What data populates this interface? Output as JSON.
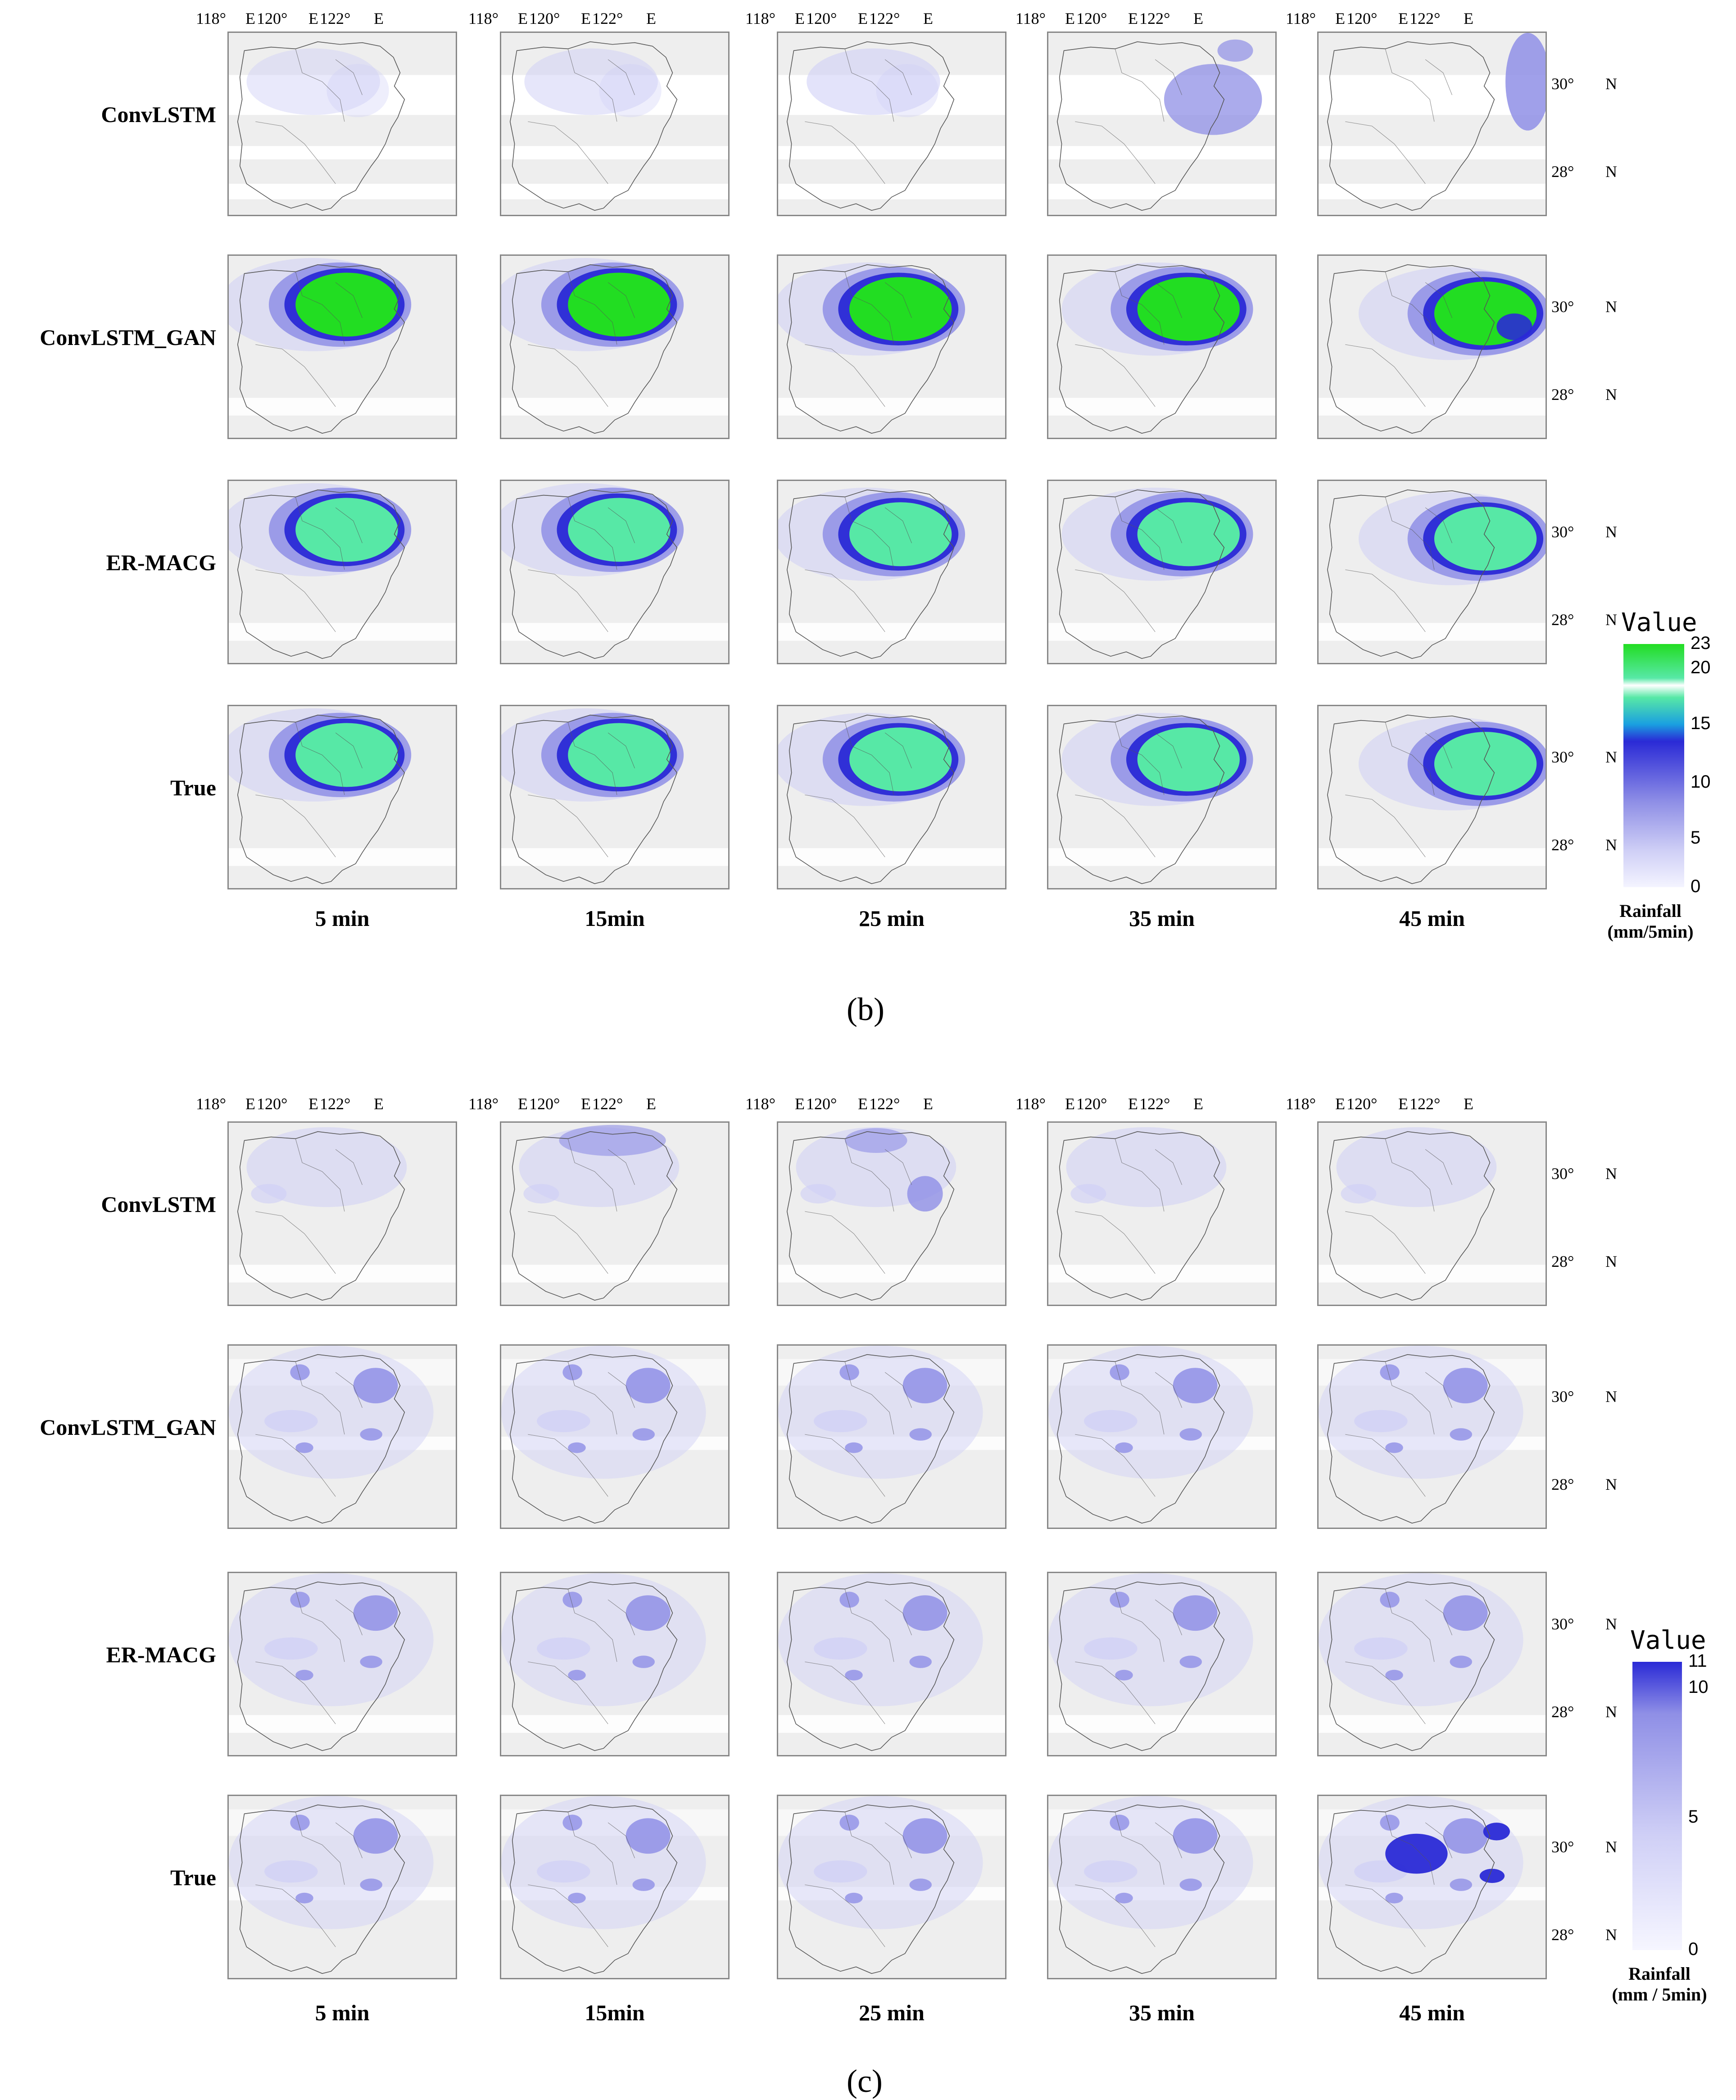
{
  "colors": {
    "background": "#ffffff",
    "land": "#eeeeee",
    "light_purple": "#cfcff6",
    "mid_purple": "#8f8fe6",
    "deep_blue": "#2a2ad6",
    "cyan_green": "#57e8a6",
    "bright_green": "#22dd22",
    "coast_line": "#555555"
  },
  "figures": [
    {
      "id": "b",
      "sublabel": "(b)",
      "lon_labels": [
        "118°",
        "E",
        "120°",
        "E",
        "122°",
        "E"
      ],
      "lat_labels": [
        "30°",
        "N",
        "28°",
        "N"
      ],
      "rows": [
        "ConvLSTM",
        "ConvLSTM_GAN",
        "ER-MACG",
        "True"
      ],
      "columns": [
        "5 min",
        "15min",
        "25 min",
        "35 min",
        "45 min"
      ],
      "colorbar": {
        "title": "Value",
        "ticks": [
          "23",
          "20",
          "15",
          "10",
          "5",
          "0"
        ],
        "unit_line1": "Rainfall",
        "unit_line2": "(mm/5min)"
      }
    },
    {
      "id": "c",
      "sublabel": "(c)",
      "lon_labels": [
        "118°",
        "E",
        "120°",
        "E",
        "122°",
        "E"
      ],
      "lat_labels": [
        "30°",
        "N",
        "28°",
        "N"
      ],
      "rows": [
        "ConvLSTM",
        "ConvLSTM_GAN",
        "ER-MACG",
        "True"
      ],
      "columns": [
        "5 min",
        "15min",
        "25 min",
        "35 min",
        "45 min"
      ],
      "colorbar": {
        "title": "Value",
        "ticks": [
          "11",
          "10",
          "5",
          "0"
        ],
        "unit_line1": "Rainfall",
        "unit_line2": "(mm / 5min)"
      }
    }
  ]
}
